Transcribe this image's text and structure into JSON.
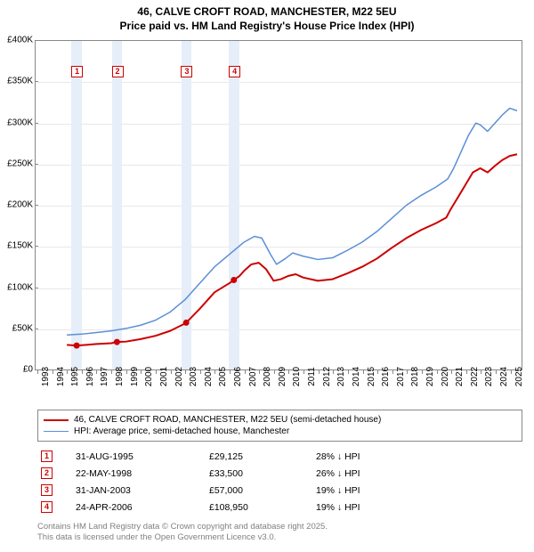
{
  "title": {
    "line1": "46, CALVE CROFT ROAD, MANCHESTER, M22 5EU",
    "line2": "Price paid vs. HM Land Registry's House Price Index (HPI)"
  },
  "chart": {
    "type": "line",
    "background_color": "#ffffff",
    "grid_color": "#e8e8e8",
    "axis_color": "#888888",
    "band_color": "#e6eef9",
    "x_years": [
      1993,
      1994,
      1995,
      1996,
      1997,
      1998,
      1999,
      2000,
      2001,
      2002,
      2003,
      2004,
      2005,
      2006,
      2007,
      2008,
      2009,
      2010,
      2011,
      2012,
      2013,
      2014,
      2015,
      2016,
      2017,
      2018,
      2019,
      2020,
      2021,
      2022,
      2023,
      2024,
      2025
    ],
    "y_ticks": [
      0,
      50000,
      100000,
      150000,
      200000,
      250000,
      300000,
      350000,
      400000
    ],
    "y_tick_labels": [
      "£0",
      "£50K",
      "£100K",
      "£150K",
      "£200K",
      "£250K",
      "£300K",
      "£350K",
      "£400K"
    ],
    "ylim": [
      0,
      400000
    ],
    "xlim": [
      1993,
      2025.8
    ],
    "series": [
      {
        "name": "46, CALVE CROFT ROAD, MANCHESTER, M22 5EU (semi-detached house)",
        "color": "#cc0000",
        "line_width": 2,
        "data": [
          [
            1995.0,
            30000
          ],
          [
            1995.66,
            29125
          ],
          [
            1996.3,
            30000
          ],
          [
            1997.0,
            31000
          ],
          [
            1998.0,
            32000
          ],
          [
            1998.39,
            33500
          ],
          [
            1999.0,
            34000
          ],
          [
            2000.0,
            37000
          ],
          [
            2001.0,
            41000
          ],
          [
            2002.0,
            47000
          ],
          [
            2003.0,
            56000
          ],
          [
            2003.08,
            57000
          ],
          [
            2004.0,
            74000
          ],
          [
            2005.0,
            94000
          ],
          [
            2006.0,
            105000
          ],
          [
            2006.31,
            108950
          ],
          [
            2006.7,
            114000
          ],
          [
            2007.0,
            120000
          ],
          [
            2007.5,
            128000
          ],
          [
            2008.0,
            130000
          ],
          [
            2008.5,
            122000
          ],
          [
            2009.0,
            108000
          ],
          [
            2009.5,
            110000
          ],
          [
            2010.0,
            114000
          ],
          [
            2010.5,
            116000
          ],
          [
            2011.0,
            112000
          ],
          [
            2012.0,
            108000
          ],
          [
            2013.0,
            110000
          ],
          [
            2014.0,
            117000
          ],
          [
            2015.0,
            125000
          ],
          [
            2016.0,
            135000
          ],
          [
            2017.0,
            148000
          ],
          [
            2018.0,
            160000
          ],
          [
            2019.0,
            170000
          ],
          [
            2020.0,
            178000
          ],
          [
            2020.7,
            185000
          ],
          [
            2021.0,
            195000
          ],
          [
            2021.5,
            210000
          ],
          [
            2022.0,
            225000
          ],
          [
            2022.5,
            240000
          ],
          [
            2023.0,
            245000
          ],
          [
            2023.5,
            240000
          ],
          [
            2024.0,
            248000
          ],
          [
            2024.5,
            255000
          ],
          [
            2025.0,
            260000
          ],
          [
            2025.5,
            262000
          ]
        ]
      },
      {
        "name": "HPI: Average price, semi-detached house, Manchester",
        "color": "#5b8fd6",
        "line_width": 1.5,
        "data": [
          [
            1995.0,
            42000
          ],
          [
            1996.0,
            43000
          ],
          [
            1997.0,
            45000
          ],
          [
            1998.0,
            47000
          ],
          [
            1999.0,
            50000
          ],
          [
            2000.0,
            54000
          ],
          [
            2001.0,
            60000
          ],
          [
            2002.0,
            70000
          ],
          [
            2003.0,
            85000
          ],
          [
            2004.0,
            105000
          ],
          [
            2005.0,
            125000
          ],
          [
            2006.0,
            140000
          ],
          [
            2007.0,
            155000
          ],
          [
            2007.7,
            162000
          ],
          [
            2008.2,
            160000
          ],
          [
            2008.8,
            140000
          ],
          [
            2009.2,
            128000
          ],
          [
            2009.8,
            135000
          ],
          [
            2010.3,
            142000
          ],
          [
            2011.0,
            138000
          ],
          [
            2012.0,
            134000
          ],
          [
            2013.0,
            136000
          ],
          [
            2014.0,
            145000
          ],
          [
            2015.0,
            155000
          ],
          [
            2016.0,
            168000
          ],
          [
            2017.0,
            184000
          ],
          [
            2018.0,
            200000
          ],
          [
            2019.0,
            212000
          ],
          [
            2020.0,
            222000
          ],
          [
            2020.8,
            232000
          ],
          [
            2021.2,
            245000
          ],
          [
            2021.7,
            265000
          ],
          [
            2022.2,
            285000
          ],
          [
            2022.7,
            300000
          ],
          [
            2023.0,
            298000
          ],
          [
            2023.5,
            290000
          ],
          [
            2024.0,
            300000
          ],
          [
            2024.5,
            310000
          ],
          [
            2025.0,
            318000
          ],
          [
            2025.5,
            315000
          ]
        ]
      }
    ],
    "sale_markers": [
      {
        "n": "1",
        "x": 1995.66,
        "band_width_years": 0.7
      },
      {
        "n": "2",
        "x": 1998.39,
        "band_width_years": 0.7
      },
      {
        "n": "3",
        "x": 2003.08,
        "band_width_years": 0.7
      },
      {
        "n": "4",
        "x": 2006.31,
        "band_width_years": 0.7
      }
    ],
    "marker_color": "#cc0000",
    "title_fontsize": 12,
    "axis_label_fontsize": 10
  },
  "legend": {
    "items": [
      {
        "color": "#cc0000",
        "width": 2,
        "label": "46, CALVE CROFT ROAD, MANCHESTER, M22 5EU (semi-detached house)"
      },
      {
        "color": "#5b8fd6",
        "width": 1.5,
        "label": "HPI: Average price, semi-detached house, Manchester"
      }
    ]
  },
  "sales": [
    {
      "n": "1",
      "date": "31-AUG-1995",
      "price": "£29,125",
      "diff": "28% ↓ HPI"
    },
    {
      "n": "2",
      "date": "22-MAY-1998",
      "price": "£33,500",
      "diff": "26% ↓ HPI"
    },
    {
      "n": "3",
      "date": "31-JAN-2003",
      "price": "£57,000",
      "diff": "19% ↓ HPI"
    },
    {
      "n": "4",
      "date": "24-APR-2006",
      "price": "£108,950",
      "diff": "19% ↓ HPI"
    }
  ],
  "footer": {
    "line1": "Contains HM Land Registry data © Crown copyright and database right 2025.",
    "line2": "This data is licensed under the Open Government Licence v3.0."
  }
}
